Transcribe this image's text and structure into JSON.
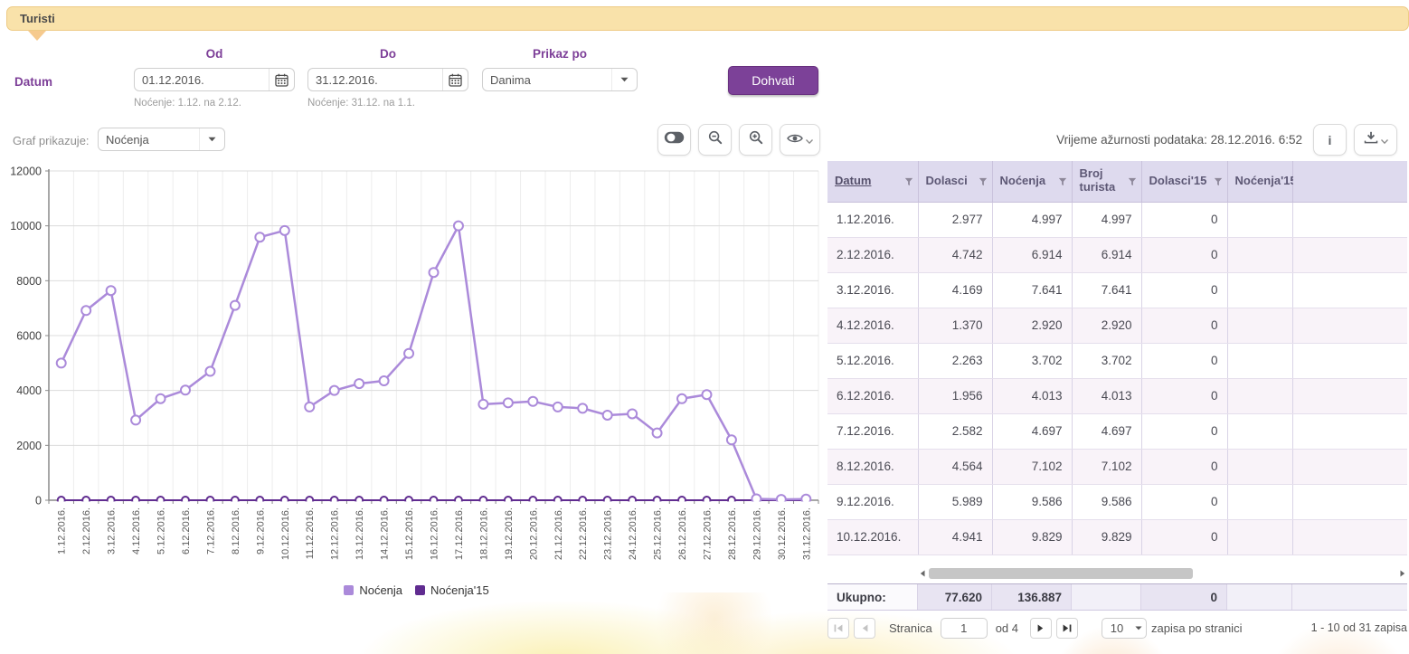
{
  "panel": {
    "title": "Turisti"
  },
  "filters": {
    "datum_label": "Datum",
    "od_label": "Od",
    "do_label": "Do",
    "prikaz_label": "Prikaz po",
    "od_value": "01.12.2016.",
    "do_value": "31.12.2016.",
    "od_note": "Noćenje: 1.12. na 2.12.",
    "do_note": "Noćenje: 31.12. na 1.1.",
    "prikaz_value": "Danima",
    "fetch_button": "Dohvati"
  },
  "chart_toolbar": {
    "graf_label": "Graf prikazuje:",
    "graf_value": "Noćenja"
  },
  "table_toolbar": {
    "updated_label": "Vrijeme ažurnosti podataka: 28.12.2016. 6:52",
    "info_button": "i"
  },
  "chart_data": {
    "type": "line",
    "x": [
      "1.12.2016.",
      "2.12.2016.",
      "3.12.2016.",
      "4.12.2016.",
      "5.12.2016.",
      "6.12.2016.",
      "7.12.2016.",
      "8.12.2016.",
      "9.12.2016.",
      "10.12.2016.",
      "11.12.2016.",
      "12.12.2016.",
      "13.12.2016.",
      "14.12.2016.",
      "15.12.2016.",
      "16.12.2016.",
      "17.12.2016.",
      "18.12.2016.",
      "19.12.2016.",
      "20.12.2016.",
      "21.12.2016.",
      "22.12.2016.",
      "23.12.2016.",
      "24.12.2016.",
      "25.12.2016.",
      "26.12.2016.",
      "27.12.2016.",
      "28.12.2016.",
      "29.12.2016.",
      "30.12.2016.",
      "31.12.2016."
    ],
    "series": [
      {
        "name": "Noćenja",
        "color": "#ab8ada",
        "values": [
          4997,
          6914,
          7641,
          2920,
          3702,
          4013,
          4697,
          7102,
          9586,
          9829,
          3400,
          4000,
          4250,
          4350,
          5350,
          8300,
          10000,
          3500,
          3550,
          3600,
          3400,
          3350,
          3100,
          3150,
          2450,
          3700,
          3850,
          2200,
          50,
          30,
          40
        ]
      },
      {
        "name": "Noćenja'15",
        "color": "#602c90",
        "values": [
          0,
          0,
          0,
          0,
          0,
          0,
          0,
          0,
          0,
          0,
          0,
          0,
          0,
          0,
          0,
          0,
          0,
          0,
          0,
          0,
          0,
          0,
          0,
          0,
          0,
          0,
          0,
          0,
          0,
          0,
          0
        ]
      }
    ],
    "ylim": [
      0,
      12000
    ],
    "ytick_step": 2000,
    "grid": true,
    "legend_position": "bottom"
  },
  "table": {
    "columns": [
      "Datum",
      "Dolasci",
      "Noćenja",
      "Broj turista",
      "Dolasci'15",
      "Noćenja'15"
    ],
    "rows": [
      {
        "datum": "1.12.2016.",
        "dolasci": "2.977",
        "nocenja": "4.997",
        "broj_turista": "4.997",
        "dolasci_15": "0",
        "nocenja_15": ""
      },
      {
        "datum": "2.12.2016.",
        "dolasci": "4.742",
        "nocenja": "6.914",
        "broj_turista": "6.914",
        "dolasci_15": "0",
        "nocenja_15": ""
      },
      {
        "datum": "3.12.2016.",
        "dolasci": "4.169",
        "nocenja": "7.641",
        "broj_turista": "7.641",
        "dolasci_15": "0",
        "nocenja_15": ""
      },
      {
        "datum": "4.12.2016.",
        "dolasci": "1.370",
        "nocenja": "2.920",
        "broj_turista": "2.920",
        "dolasci_15": "0",
        "nocenja_15": ""
      },
      {
        "datum": "5.12.2016.",
        "dolasci": "2.263",
        "nocenja": "3.702",
        "broj_turista": "3.702",
        "dolasci_15": "0",
        "nocenja_15": ""
      },
      {
        "datum": "6.12.2016.",
        "dolasci": "1.956",
        "nocenja": "4.013",
        "broj_turista": "4.013",
        "dolasci_15": "0",
        "nocenja_15": ""
      },
      {
        "datum": "7.12.2016.",
        "dolasci": "2.582",
        "nocenja": "4.697",
        "broj_turista": "4.697",
        "dolasci_15": "0",
        "nocenja_15": ""
      },
      {
        "datum": "8.12.2016.",
        "dolasci": "4.564",
        "nocenja": "7.102",
        "broj_turista": "7.102",
        "dolasci_15": "0",
        "nocenja_15": ""
      },
      {
        "datum": "9.12.2016.",
        "dolasci": "5.989",
        "nocenja": "9.586",
        "broj_turista": "9.586",
        "dolasci_15": "0",
        "nocenja_15": ""
      },
      {
        "datum": "10.12.2016.",
        "dolasci": "4.941",
        "nocenja": "9.829",
        "broj_turista": "9.829",
        "dolasci_15": "0",
        "nocenja_15": ""
      }
    ],
    "footer": {
      "label": "Ukupno:",
      "dolasci": "77.620",
      "nocenja": "136.887",
      "broj_turista": "",
      "dolasci_15": "0",
      "nocenja_15": ""
    }
  },
  "pagination": {
    "stranica_label": "Stranica",
    "page_value": "1",
    "of_label": "od 4",
    "page_size": "10",
    "page_size_label": "zapisa po stranici",
    "range_label": "1 - 10 od 31 zapisa"
  }
}
